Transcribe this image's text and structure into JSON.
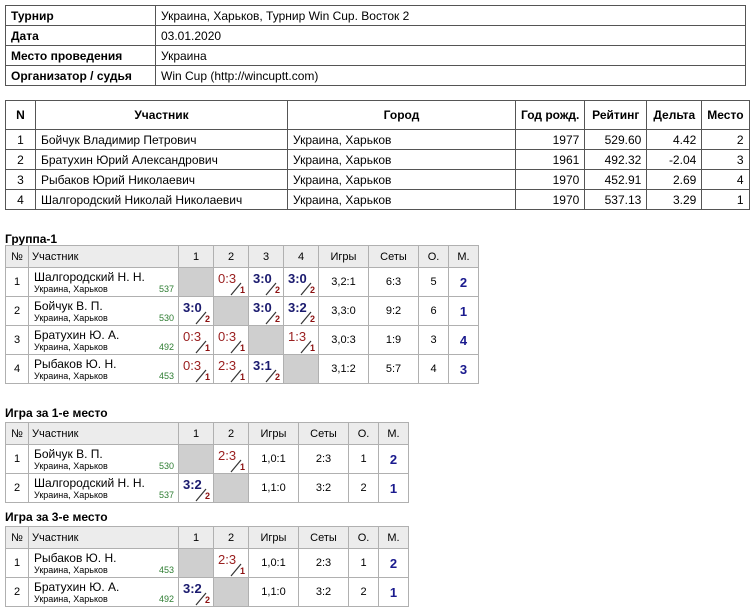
{
  "info": {
    "rows": [
      [
        "Турнир",
        "Украина, Харьков, Турнир Win Cup. Восток 2"
      ],
      [
        "Дата",
        "03.01.2020"
      ],
      [
        "Место проведения",
        "Украина"
      ],
      [
        "Организатор / судья",
        "Win Cup (http://wincuptt.com)"
      ]
    ]
  },
  "participants": {
    "header": [
      "N",
      "Участник",
      "Город",
      "Год рожд.",
      "Рейтинг",
      "Дельта",
      "Место"
    ],
    "rows": [
      [
        "1",
        "Бойчук Владимир Петрович",
        "Украина, Харьков",
        "1977",
        "529.60",
        "4.42",
        "2"
      ],
      [
        "2",
        "Братухин Юрий Александрович",
        "Украина, Харьков",
        "1961",
        "492.32",
        "-2.04",
        "3"
      ],
      [
        "3",
        "Рыбаков Юрий Николаевич",
        "Украина, Харьков",
        "1970",
        "452.91",
        "2.69",
        "4"
      ],
      [
        "4",
        "Шалгородский Николай Николаевич",
        "Украина, Харьков",
        "1970",
        "537.13",
        "3.29",
        "1"
      ]
    ]
  },
  "groups": [
    {
      "title": "Группа-1",
      "header": [
        "№",
        "Участник",
        "1",
        "2",
        "3",
        "4",
        "Игры",
        "Сеты",
        "О.",
        "М."
      ],
      "rows": [
        {
          "num": "1",
          "name": "Шалгородский Н. Н.",
          "city": "Украина, Харьков",
          "rating": "537",
          "matches": [
            null,
            {
              "score": "0:3",
              "mark": "1"
            },
            {
              "score": "3:0",
              "mark": "2"
            },
            {
              "score": "3:0",
              "mark": "2"
            }
          ],
          "games": "3,2:1",
          "sets": "6:3",
          "points": "5",
          "place": "2"
        },
        {
          "num": "2",
          "name": "Бойчук В. П.",
          "city": "Украина, Харьков",
          "rating": "530",
          "matches": [
            {
              "score": "3:0",
              "mark": "2"
            },
            null,
            {
              "score": "3:0",
              "mark": "2"
            },
            {
              "score": "3:2",
              "mark": "2"
            }
          ],
          "games": "3,3:0",
          "sets": "9:2",
          "points": "6",
          "place": "1"
        },
        {
          "num": "3",
          "name": "Братухин Ю. А.",
          "city": "Украина, Харьков",
          "rating": "492",
          "matches": [
            {
              "score": "0:3",
              "mark": "1"
            },
            {
              "score": "0:3",
              "mark": "1"
            },
            null,
            {
              "score": "1:3",
              "mark": "1"
            }
          ],
          "games": "3,0:3",
          "sets": "1:9",
          "points": "3",
          "place": "4"
        },
        {
          "num": "4",
          "name": "Рыбаков Ю. Н.",
          "city": "Украина, Харьков",
          "rating": "453",
          "matches": [
            {
              "score": "0:3",
              "mark": "1"
            },
            {
              "score": "2:3",
              "mark": "1"
            },
            {
              "score": "3:1",
              "mark": "2"
            },
            null
          ],
          "games": "3,1:2",
          "sets": "5:7",
          "points": "4",
          "place": "3"
        }
      ]
    },
    {
      "title": "Игра за 1-е место",
      "header": [
        "№",
        "Участник",
        "1",
        "2",
        "Игры",
        "Сеты",
        "О.",
        "М."
      ],
      "rows": [
        {
          "num": "1",
          "name": "Бойчук В. П.",
          "city": "Украина, Харьков",
          "rating": "530",
          "matches": [
            null,
            {
              "score": "2:3",
              "mark": "1"
            }
          ],
          "games": "1,0:1",
          "sets": "2:3",
          "points": "1",
          "place": "2"
        },
        {
          "num": "2",
          "name": "Шалгородский Н. Н.",
          "city": "Украина, Харьков",
          "rating": "537",
          "matches": [
            {
              "score": "3:2",
              "mark": "2"
            },
            null
          ],
          "games": "1,1:0",
          "sets": "3:2",
          "points": "2",
          "place": "1"
        }
      ]
    },
    {
      "title": "Игра за 3-е место",
      "header": [
        "№",
        "Участник",
        "1",
        "2",
        "Игры",
        "Сеты",
        "О.",
        "М."
      ],
      "rows": [
        {
          "num": "1",
          "name": "Рыбаков Ю. Н.",
          "city": "Украина, Харьков",
          "rating": "453",
          "matches": [
            null,
            {
              "score": "2:3",
              "mark": "1"
            }
          ],
          "games": "1,0:1",
          "sets": "2:3",
          "points": "1",
          "place": "2"
        },
        {
          "num": "2",
          "name": "Братухин Ю. А.",
          "city": "Украина, Харьков",
          "rating": "492",
          "matches": [
            {
              "score": "3:2",
              "mark": "2"
            },
            null
          ],
          "games": "1,1:0",
          "sets": "3:2",
          "points": "2",
          "place": "1"
        }
      ]
    }
  ]
}
